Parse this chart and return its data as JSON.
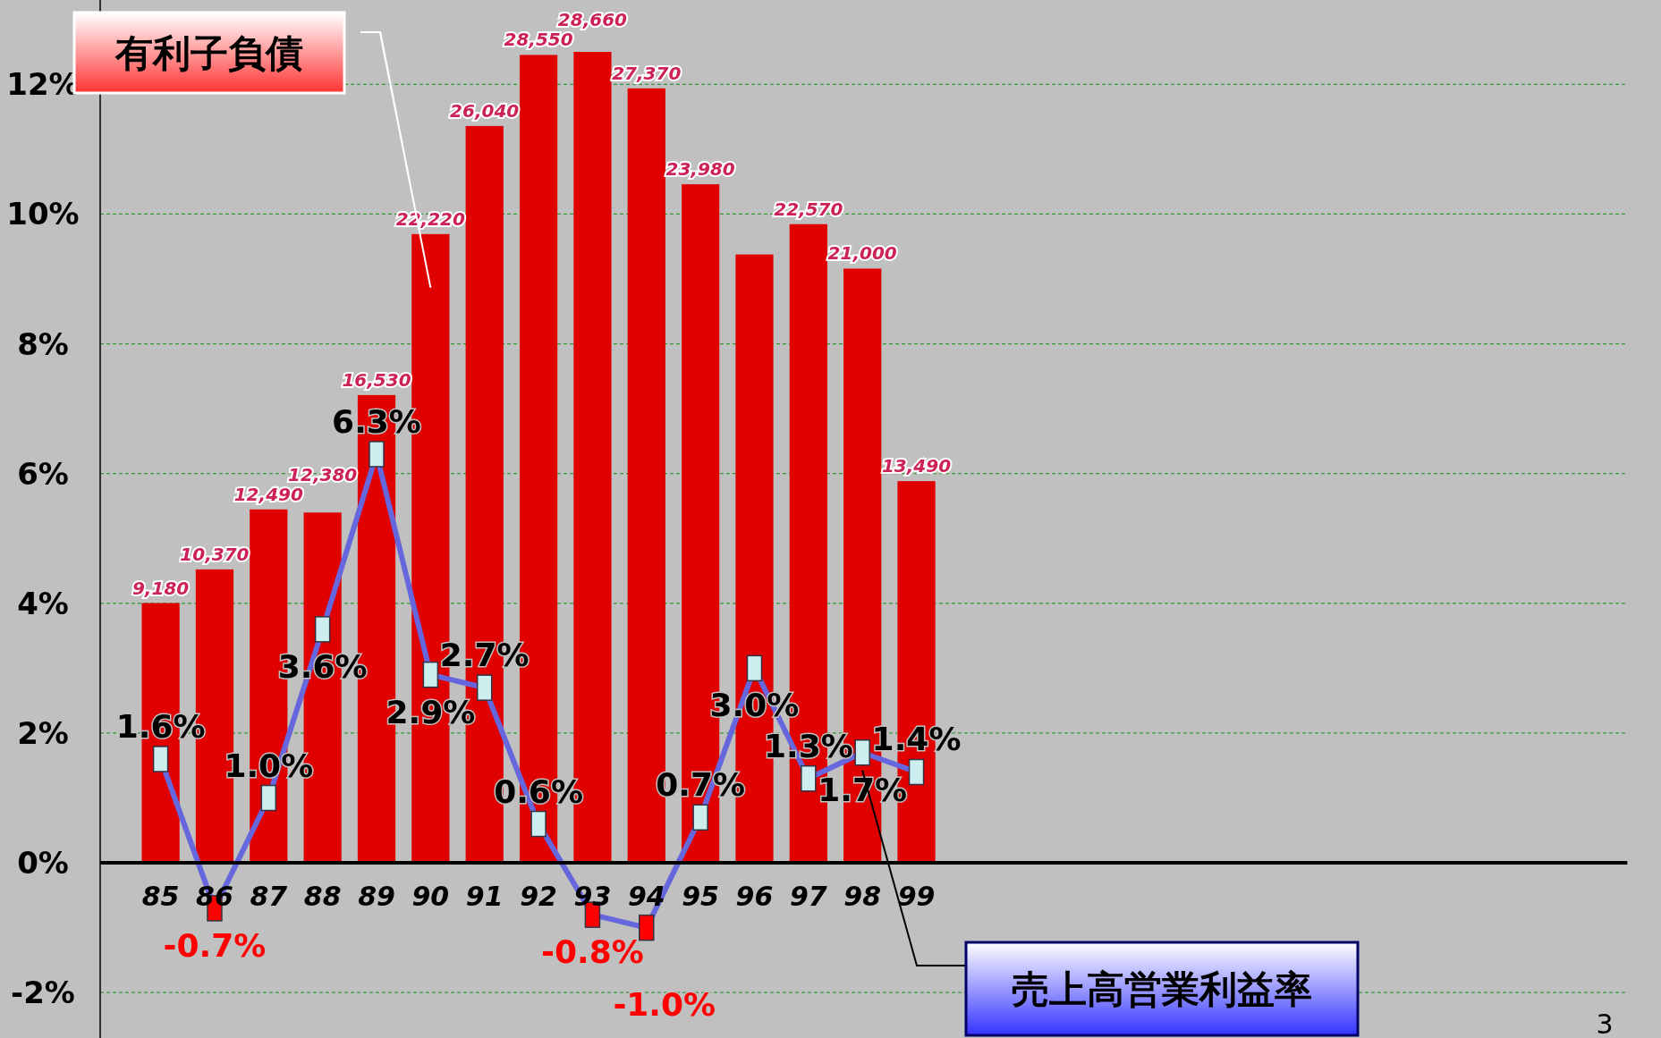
{
  "chart_data": {
    "type": "bar",
    "categories": [
      "85",
      "86",
      "87",
      "88",
      "89",
      "90",
      "91",
      "92",
      "93",
      "94",
      "95",
      "96",
      "97",
      "98",
      "99"
    ],
    "series": [
      {
        "name": "有利子負債",
        "axis": "y2",
        "color": "#e00000",
        "values": [
          9180,
          10370,
          12490,
          12380,
          16530,
          22220,
          26040,
          28550,
          28660,
          27370,
          23980,
          21500,
          22570,
          21000,
          13490
        ],
        "value_labels": [
          "9,180",
          "10,370",
          "12,490",
          "12,380",
          "16,530",
          "22,220",
          "26,040",
          "28,550",
          "28,660",
          "27,370",
          "23,980",
          null,
          "22,570",
          "21,000",
          "13,490"
        ]
      },
      {
        "name": "売上高営業利益率",
        "type": "line",
        "color": "#6666dd",
        "marker": "square",
        "line_style": "solid",
        "colors": [
          "#cceeee",
          "#ff0000",
          "#cceeee",
          "#cceeee",
          "#cceeee",
          "#cceeee",
          "#cceeee",
          "#cceeee",
          "#ff0000",
          "#ff0000",
          "#cceeee",
          "#cceeee",
          "#cceeee",
          "#cceeee",
          "#cceeee"
        ],
        "values": [
          1.6,
          -0.7,
          1.0,
          3.6,
          6.3,
          2.9,
          2.7,
          0.6,
          -0.8,
          -1.0,
          0.7,
          3.0,
          1.3,
          1.7,
          1.4
        ],
        "value_labels": [
          "1.6%",
          "-0.7%",
          "1.0%",
          "3.6%",
          "6.3%",
          "2.9%",
          "2.7%",
          "0.6%",
          "-0.8%",
          "-1.0%",
          "0.7%",
          "3.0%",
          "1.3%",
          "1.7%",
          "1.4%"
        ]
      }
    ],
    "ylim": [
      -2.7,
      13.3
    ],
    "yticks": [
      {
        "value": -2,
        "label": "-2%"
      },
      {
        "value": 0,
        "label": "0%"
      },
      {
        "value": 2,
        "label": "2%"
      },
      {
        "value": 4,
        "label": "4%"
      },
      {
        "value": 6,
        "label": "6%"
      },
      {
        "value": 8,
        "label": "8%"
      },
      {
        "value": 10,
        "label": "10%"
      },
      {
        "value": 12,
        "label": "12%"
      }
    ],
    "grid": "y",
    "annotations": [
      "3"
    ]
  }
}
